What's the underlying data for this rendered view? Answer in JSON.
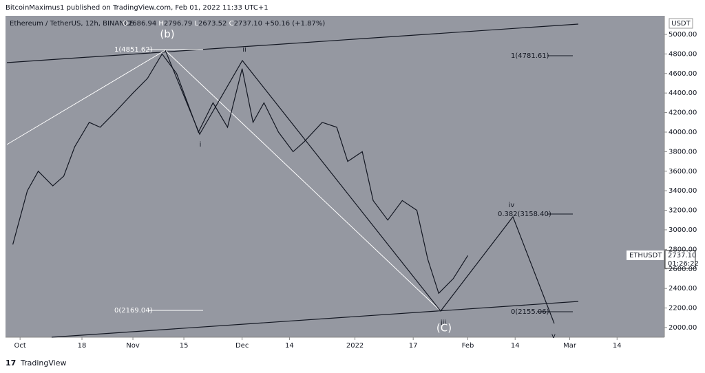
{
  "header": {
    "publisher": "BitcoinMaximus1 published on TradingView.com, Feb 01, 2022 11:33 UTC+1",
    "symbol": "Ethereum / TetherUS, 12h, BINANCE",
    "open": "2686.94",
    "high": "2796.79",
    "low": "2673.52",
    "close": "2737.10",
    "change": "+50.16 (+1.87%)",
    "currency": "USDT"
  },
  "price_tag": {
    "symbol": "ETHUSDT",
    "price": "2737.10",
    "countdown": "01:26:22"
  },
  "annotations": {
    "b": "(b)",
    "fib_top": "1(4851.62)",
    "ii": "ii",
    "i": "i",
    "fib_ext": "1(4781.61)",
    "iv": "iv",
    "fib_382": "0.382(3158.40)",
    "fib_zero": "0(2169.04)",
    "fib_low": "0(2155.06)",
    "iii": "iii",
    "c": "(C)",
    "v": "v"
  },
  "footer": "TradingView",
  "chart_data": {
    "type": "line",
    "color": "#131722",
    "x": [
      "2021-09-29",
      "2021-10-03",
      "2021-10-06",
      "2021-10-10",
      "2021-10-13",
      "2021-10-16",
      "2021-10-20",
      "2021-10-23",
      "2021-10-27",
      "2021-11-01",
      "2021-11-05",
      "2021-11-09",
      "2021-11-13",
      "2021-11-19",
      "2021-11-23",
      "2021-11-27",
      "2021-12-01",
      "2021-12-04",
      "2021-12-07",
      "2021-12-11",
      "2021-12-15",
      "2021-12-18",
      "2021-12-23",
      "2021-12-27",
      "2021-12-30",
      "2022-01-03",
      "2022-01-06",
      "2022-01-10",
      "2022-01-14",
      "2022-01-18",
      "2022-01-21",
      "2022-01-24",
      "2022-01-28",
      "2022-02-01"
    ],
    "values": [
      2850,
      3400,
      3600,
      3450,
      3550,
      3850,
      4100,
      4050,
      4200,
      4400,
      4550,
      4800,
      4600,
      4000,
      4300,
      4050,
      4650,
      4100,
      4300,
      4000,
      3800,
      3900,
      4100,
      4050,
      3700,
      3800,
      3300,
      3100,
      3300,
      3200,
      2700,
      2350,
      2500,
      2737
    ],
    "xlim": [
      "2021-09-27",
      "2022-03-27"
    ],
    "xticks": [
      {
        "value": "2021-10-01",
        "label": "Oct"
      },
      {
        "value": "2021-10-18",
        "label": "18"
      },
      {
        "value": "2021-11-01",
        "label": "Nov"
      },
      {
        "value": "2021-11-15",
        "label": "15"
      },
      {
        "value": "2021-12-01",
        "label": "Dec"
      },
      {
        "value": "2021-12-14",
        "label": "14"
      },
      {
        "value": "2022-01-01",
        "label": "2022"
      },
      {
        "value": "2022-01-17",
        "label": "17"
      },
      {
        "value": "2022-02-01",
        "label": "Feb"
      },
      {
        "value": "2022-02-14",
        "label": "14"
      },
      {
        "value": "2022-03-01",
        "label": "Mar"
      },
      {
        "value": "2022-03-14",
        "label": "14"
      }
    ],
    "ylim": [
      1901,
      5190
    ],
    "yticks": [
      {
        "value": 2000,
        "label": "2000.00"
      },
      {
        "value": 2200,
        "label": "2200.00"
      },
      {
        "value": 2400,
        "label": "2400.00"
      },
      {
        "value": 2600,
        "label": "2600.00"
      },
      {
        "value": 2800,
        "label": "2800.00"
      },
      {
        "value": 3000,
        "label": "3000.00"
      },
      {
        "value": 3200,
        "label": "3200.00"
      },
      {
        "value": 3400,
        "label": "3400.00"
      },
      {
        "value": 3600,
        "label": "3600.00"
      },
      {
        "value": 3800,
        "label": "3800.00"
      },
      {
        "value": 4000,
        "label": "4000.00"
      },
      {
        "value": 4200,
        "label": "4200.00"
      },
      {
        "value": 4400,
        "label": "4400.00"
      },
      {
        "value": 4600,
        "label": "4600.00"
      },
      {
        "value": 4800,
        "label": "4800.00"
      },
      {
        "value": 5000,
        "label": "5000.00"
      }
    ]
  }
}
